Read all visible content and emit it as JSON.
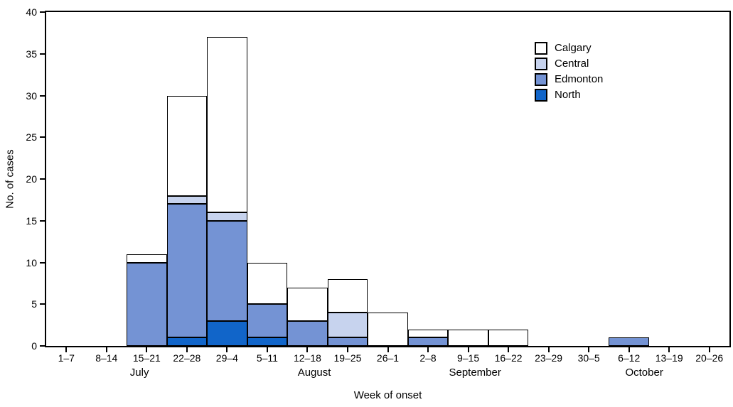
{
  "chart_data": {
    "type": "bar",
    "stacked": true,
    "title": "",
    "xlabel": "Week of onset",
    "ylabel": "No. of cases",
    "ylim": [
      0,
      40
    ],
    "y_ticks": [
      0,
      5,
      10,
      15,
      20,
      25,
      30,
      35,
      40
    ],
    "grid": false,
    "categories": [
      "1–7",
      "8–14",
      "15–21",
      "22–28",
      "29–4",
      "5–11",
      "12–18",
      "19–25",
      "26–1",
      "2–8",
      "9–15",
      "16–22",
      "23–29",
      "30–5",
      "6–12",
      "13–19",
      "20–26"
    ],
    "month_labels": [
      {
        "label": "July",
        "index": 1.82
      },
      {
        "label": "August",
        "index": 6.17
      },
      {
        "label": "September",
        "index": 10.17
      },
      {
        "label": "October",
        "index": 14.38
      }
    ],
    "series": [
      {
        "name": "North",
        "color": "#1165c9",
        "textured": true,
        "values": [
          0,
          0,
          0,
          1,
          3,
          1,
          0,
          0,
          0,
          0,
          0,
          0,
          0,
          0,
          0,
          0,
          0
        ]
      },
      {
        "name": "Edmonton",
        "color": "#7493d4",
        "textured": true,
        "values": [
          0,
          0,
          10,
          16,
          12,
          4,
          3,
          1,
          0,
          1,
          0,
          0,
          0,
          0,
          1,
          0,
          0
        ]
      },
      {
        "name": "Central",
        "color": "#c7d3ee",
        "textured": true,
        "values": [
          0,
          0,
          0,
          1,
          1,
          0,
          0,
          3,
          0,
          0,
          0,
          0,
          0,
          0,
          0,
          0,
          0
        ]
      },
      {
        "name": "Calgary",
        "color": "#ffffff",
        "textured": false,
        "values": [
          0,
          0,
          1,
          12,
          21,
          5,
          4,
          4,
          4,
          1,
          2,
          2,
          0,
          0,
          0,
          0,
          0
        ]
      }
    ],
    "bar_totals": [
      0,
      0,
      11,
      30,
      37,
      10,
      7,
      8,
      4,
      2,
      2,
      2,
      0,
      0,
      1,
      0,
      0
    ],
    "legend": {
      "position": "top-right",
      "entries": [
        "Calgary",
        "Central",
        "Edmonton",
        "North"
      ]
    },
    "colors": {
      "axis": "#000000",
      "bar_border": "#000000",
      "background": "#ffffff"
    }
  }
}
